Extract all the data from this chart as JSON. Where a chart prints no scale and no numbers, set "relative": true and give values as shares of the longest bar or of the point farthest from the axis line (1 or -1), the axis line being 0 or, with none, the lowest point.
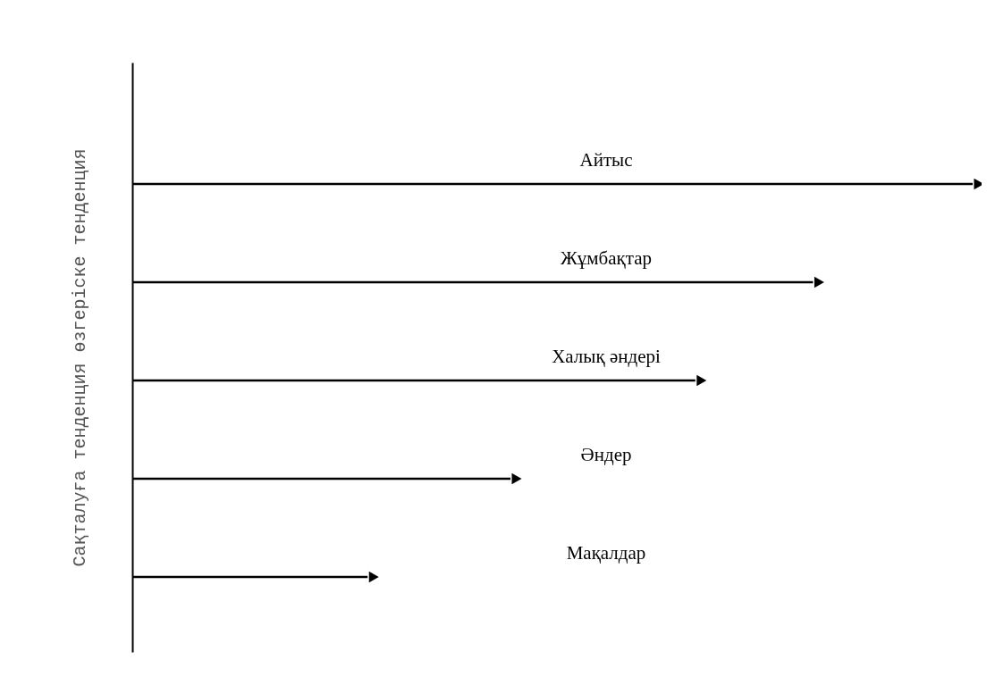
{
  "chart_data": {
    "type": "bar",
    "orientation": "horizontal",
    "relative": true,
    "ylabel": "Сақталуға тенденция өзгеріске тенденция",
    "categories": [
      "Айтыс",
      "Жұмбақтар",
      "Халық әндері",
      "Әндер",
      "Мақалдар"
    ],
    "values": [
      1,
      0.81,
      0.67,
      0.45,
      0.28
    ],
    "color": "#000000"
  }
}
